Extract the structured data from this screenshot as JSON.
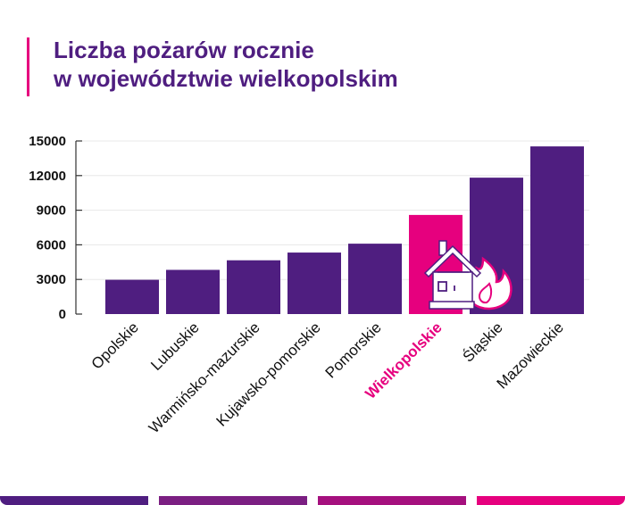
{
  "title_lines": [
    "Liczba pożarów rocznie",
    "w województwie wielkopolskim"
  ],
  "colors": {
    "bar": "#4f1e80",
    "highlight": "#e6007e",
    "footer": [
      "#4f1e80",
      "#7b1f82",
      "#a5107e",
      "#e6007e"
    ]
  },
  "chart_data": {
    "type": "bar",
    "title": "Liczba pożarów rocznie w województwie wielkopolskim",
    "categories": [
      "Opolskie",
      "Lubuskie",
      "Warmińsko-mazurskie",
      "Kujawsko-pomorskie",
      "Pomorskie",
      "Wielkopolskie",
      "Śląskie",
      "Mazowieckie"
    ],
    "values": [
      2970,
      3830,
      4660,
      5330,
      6100,
      8590,
      11820,
      14530
    ],
    "highlight": "Wielkopolskie",
    "yticks": [
      0,
      3000,
      6000,
      9000,
      12000,
      15000
    ],
    "ylim": [
      0,
      15000
    ],
    "grid": true,
    "xlabel": "",
    "ylabel": "",
    "icon": "house-fire-icon"
  }
}
